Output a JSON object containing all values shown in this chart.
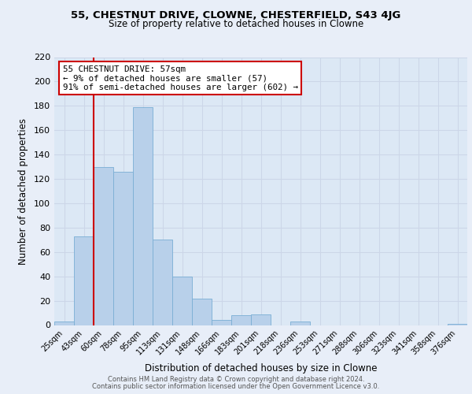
{
  "title1": "55, CHESTNUT DRIVE, CLOWNE, CHESTERFIELD, S43 4JG",
  "title2": "Size of property relative to detached houses in Clowne",
  "xlabel": "Distribution of detached houses by size in Clowne",
  "ylabel": "Number of detached properties",
  "bar_labels": [
    "25sqm",
    "43sqm",
    "60sqm",
    "78sqm",
    "95sqm",
    "113sqm",
    "131sqm",
    "148sqm",
    "166sqm",
    "183sqm",
    "201sqm",
    "218sqm",
    "236sqm",
    "253sqm",
    "271sqm",
    "288sqm",
    "306sqm",
    "323sqm",
    "341sqm",
    "358sqm",
    "376sqm"
  ],
  "bar_values": [
    3,
    73,
    130,
    126,
    179,
    70,
    40,
    22,
    4,
    8,
    9,
    0,
    3,
    0,
    0,
    0,
    0,
    0,
    0,
    0,
    1
  ],
  "bar_color": "#b8d0ea",
  "bar_edge_color": "#7aaed4",
  "vline_color": "#cc0000",
  "annotation_text": "55 CHESTNUT DRIVE: 57sqm\n← 9% of detached houses are smaller (57)\n91% of semi-detached houses are larger (602) →",
  "annotation_box_edge": "#cc0000",
  "annotation_box_face": "#ffffff",
  "ylim": [
    0,
    220
  ],
  "yticks": [
    0,
    20,
    40,
    60,
    80,
    100,
    120,
    140,
    160,
    180,
    200,
    220
  ],
  "grid_color": "#ccd6e8",
  "background_color": "#dce8f5",
  "fig_bg_color": "#e8eef8",
  "footer1": "Contains HM Land Registry data © Crown copyright and database right 2024.",
  "footer2": "Contains public sector information licensed under the Open Government Licence v3.0."
}
